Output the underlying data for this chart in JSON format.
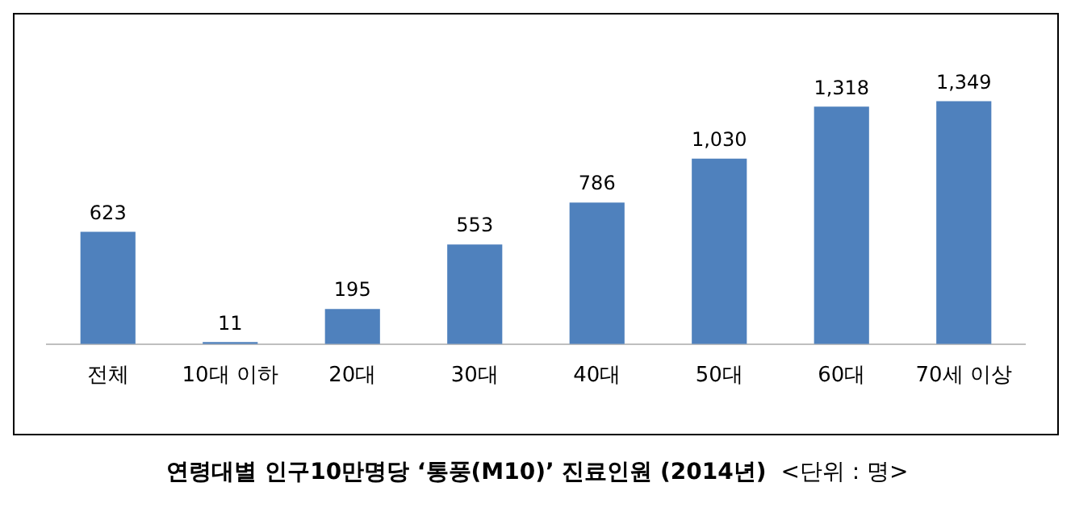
{
  "chart_data": {
    "type": "bar",
    "title": "연령대별  인구10만명당  ‘통풍(M10)’  진료인원  (2014년)",
    "subtitle": "<단위 : 명>",
    "categories": [
      "전체",
      "10대 이하",
      "20대",
      "30대",
      "40대",
      "50대",
      "60대",
      "70세 이상"
    ],
    "values": [
      623,
      11,
      195,
      553,
      786,
      1030,
      1318,
      1349
    ],
    "value_labels": [
      "623",
      "11",
      "195",
      "553",
      "786",
      "1,030",
      "1,318",
      "1,349"
    ],
    "color": "#4f81bd",
    "grid": false,
    "legend": false
  }
}
